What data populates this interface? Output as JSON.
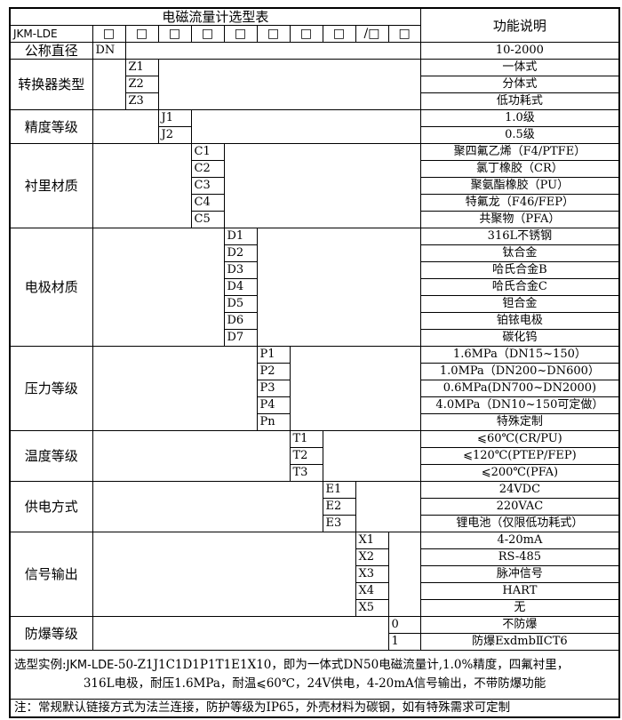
{
  "title": "电磁流量计选型表",
  "function_header": "功能说明",
  "model_prefix": "JKM-LDE",
  "code_boxes": [
    "□",
    "□",
    "□",
    "□",
    "□",
    "□",
    "□",
    "□",
    "/□",
    "□"
  ],
  "diameter": {
    "label": "公称直径",
    "code": "DN",
    "function": "10-2000"
  },
  "groups": [
    {
      "label": "转换器类型",
      "col": 2,
      "rows": [
        {
          "code": "Z1",
          "function": "一体式"
        },
        {
          "code": "Z2",
          "function": "分体式"
        },
        {
          "code": "Z3",
          "function": "低功耗式"
        }
      ]
    },
    {
      "label": "精度等级",
      "col": 3,
      "rows": [
        {
          "code": "J1",
          "function": "1.0级"
        },
        {
          "code": "J2",
          "function": "0.5级"
        }
      ]
    },
    {
      "label": "衬里材质",
      "col": 4,
      "rows": [
        {
          "code": "C1",
          "function": "聚四氟乙烯（F4/PTFE）"
        },
        {
          "code": "C2",
          "function": "氯丁橡胶（CR）"
        },
        {
          "code": "C3",
          "function": "聚氨酯橡胶（PU）"
        },
        {
          "code": "C4",
          "function": "特氟龙（F46/FEP）"
        },
        {
          "code": "C5",
          "function": "共聚物（PFA）"
        }
      ]
    },
    {
      "label": "电极材质",
      "col": 5,
      "rows": [
        {
          "code": "D1",
          "function": "316L不锈钢"
        },
        {
          "code": "D2",
          "function": "钛合金"
        },
        {
          "code": "D3",
          "function": "哈氏合金B"
        },
        {
          "code": "D4",
          "function": "哈氏合金C"
        },
        {
          "code": "D5",
          "function": "钽合金"
        },
        {
          "code": "D6",
          "function": "铂铱电极"
        },
        {
          "code": "D7",
          "function": "碳化钨"
        }
      ]
    },
    {
      "label": "压力等级",
      "col": 6,
      "rows": [
        {
          "code": "P1",
          "function": "1.6MPa（DN15~150）"
        },
        {
          "code": "P2",
          "function": "1.0MPa（DN200~DN600）"
        },
        {
          "code": "P3",
          "function": "0.6MPa(DN700~DN2000)"
        },
        {
          "code": "P4",
          "function": "4.0MPa（DN10~150可定做）"
        },
        {
          "code": "Pn",
          "function": "特殊定制"
        }
      ]
    },
    {
      "label": "温度等级",
      "col": 7,
      "rows": [
        {
          "code": "T1",
          "function": "⩽60℃(CR/PU)"
        },
        {
          "code": "T2",
          "function": "⩽120℃(PTEP/FEP)"
        },
        {
          "code": "T3",
          "function": "⩽200℃(PFA)"
        }
      ]
    },
    {
      "label": "供电方式",
      "col": 8,
      "rows": [
        {
          "code": "E1",
          "function": "24VDC"
        },
        {
          "code": "E2",
          "function": "220VAC"
        },
        {
          "code": "E3",
          "function": "锂电池（仅限低功耗式）"
        }
      ]
    },
    {
      "label": "信号输出",
      "col": 9,
      "rows": [
        {
          "code": "X1",
          "function": "4-20mA"
        },
        {
          "code": "X2",
          "function": "RS-485"
        },
        {
          "code": "X3",
          "function": "脉冲信号"
        },
        {
          "code": "X4",
          "function": "HART"
        },
        {
          "code": "X5",
          "function": "无"
        }
      ]
    },
    {
      "label": "防爆等级",
      "col": 10,
      "rows": [
        {
          "code": "0",
          "function": "不防爆"
        },
        {
          "code": "1",
          "function": "防爆ExdmbⅡCT6"
        }
      ]
    }
  ],
  "example": {
    "prefix": "选型实例:",
    "model": "JKM-LDE",
    "line1_rest": "-50-Z1J1C1D1P1T1E1X10，即为一体式DN50电磁流量计,1.0%精度，四氟衬里，",
    "line2": "316L电极，耐压1.6MPa，耐温⩽60℃，24V供电，4-20mA信号输出，不带防爆功能"
  },
  "note": "注：常规默认链接方式为法兰连接，防护等级为IP65，外壳材料为碳钢，如有特殊需求可定制"
}
